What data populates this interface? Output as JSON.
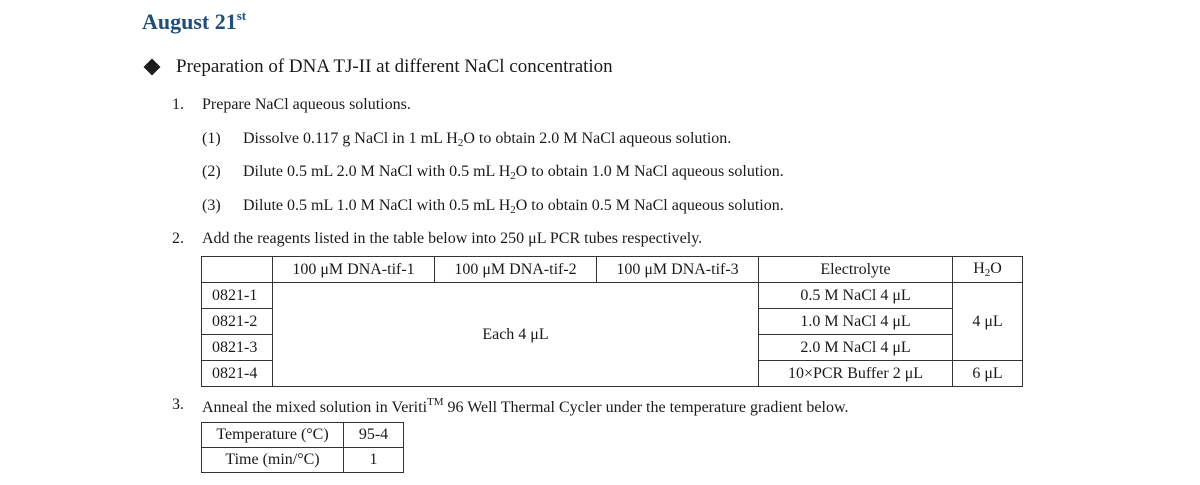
{
  "heading": {
    "text": "August 21",
    "sup": "st"
  },
  "section_title": "Preparation of DNA TJ-II at different NaCl concentration",
  "steps": [
    {
      "num": "1.",
      "text": "Prepare NaCl aqueous solutions."
    },
    {
      "num": "2.",
      "text": "Add the reagents listed in the table below into 250 μL PCR tubes respectively."
    },
    {
      "num": "3.",
      "text_before": "Anneal the mixed solution in Veriti",
      "tm": "TM",
      "text_after": " 96 Well Thermal Cycler under the temperature gradient below."
    }
  ],
  "substeps": [
    {
      "num": "(1)",
      "a": "Dissolve 0.117 g NaCl in 1 mL H",
      "sub": "2",
      "b": "O to obtain 2.0 M NaCl aqueous solution."
    },
    {
      "num": "(2)",
      "a": "Dilute 0.5 mL 2.0 M NaCl with 0.5 mL H",
      "sub": "2",
      "b": "O to obtain 1.0 M NaCl aqueous solution."
    },
    {
      "num": "(3)",
      "a": "Dilute 0.5 mL 1.0 M NaCl with 0.5 mL H",
      "sub": "2",
      "b": "O to obtain 0.5 M NaCl aqueous solution."
    }
  ],
  "reagent_table": {
    "headers": [
      "100 μM DNA-tif-1",
      "100 μM DNA-tif-2",
      "100 μM DNA-tif-3",
      "Electrolyte"
    ],
    "h2o_header": {
      "a": "H",
      "sub": "2",
      "b": "O"
    },
    "rows": [
      "0821-1",
      "0821-2",
      "0821-3",
      "0821-4"
    ],
    "dna_each": "Each 4 μL",
    "electrolyte": [
      "0.5 M NaCl 4 μL",
      "1.0 M NaCl 4 μL",
      "2.0 M NaCl 4 μL",
      "10×PCR Buffer 2 μL"
    ],
    "h2o_values": [
      "4 μL",
      "6 μL"
    ]
  },
  "temp_table": {
    "rows": [
      {
        "label": "Temperature (°C)",
        "value": "95-4"
      },
      {
        "label": "Time (min/°C)",
        "value": "1"
      }
    ]
  }
}
